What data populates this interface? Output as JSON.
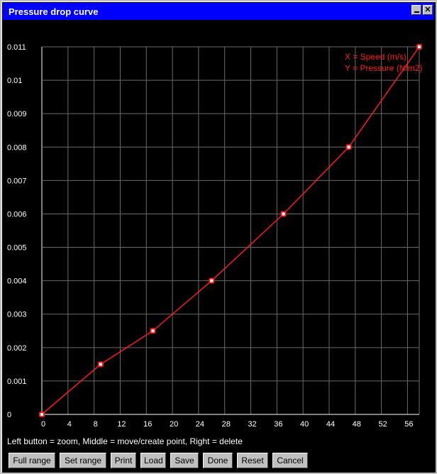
{
  "window": {
    "title": "Pressure drop curve",
    "minimize_icon": "minimize-icon",
    "close_icon": "close-icon"
  },
  "chart_data": {
    "type": "line",
    "x_ticks": [
      "0",
      "4",
      "8",
      "12",
      "16",
      "20",
      "24",
      "28",
      "32",
      "36",
      "40",
      "44",
      "48",
      "52",
      "56"
    ],
    "y_ticks": [
      "0",
      "0.001",
      "0.002",
      "0.003",
      "0.004",
      "0.005",
      "0.006",
      "0.007",
      "0.008",
      "0.009",
      "0.01",
      "0.011"
    ],
    "xlim": [
      0,
      57.8
    ],
    "ylim": [
      0,
      0.011
    ],
    "grid": true,
    "legend": {
      "position": "top-right",
      "lines": [
        "X = Speed (m/s)",
        "Y = Pressure (N/m2)"
      ]
    },
    "series": [
      {
        "color": "#ff1a1a",
        "x": [
          0,
          9,
          17,
          26,
          37,
          47,
          57.8
        ],
        "y": [
          0,
          0.0015,
          0.0025,
          0.004,
          0.006,
          0.008,
          0.011
        ]
      }
    ]
  },
  "hint": "Left button = zoom, Middle = move/create point, Right = delete",
  "buttons": [
    "Full range",
    "Set range",
    "Print",
    "Load",
    "Save",
    "Done",
    "Reset",
    "Cancel"
  ]
}
